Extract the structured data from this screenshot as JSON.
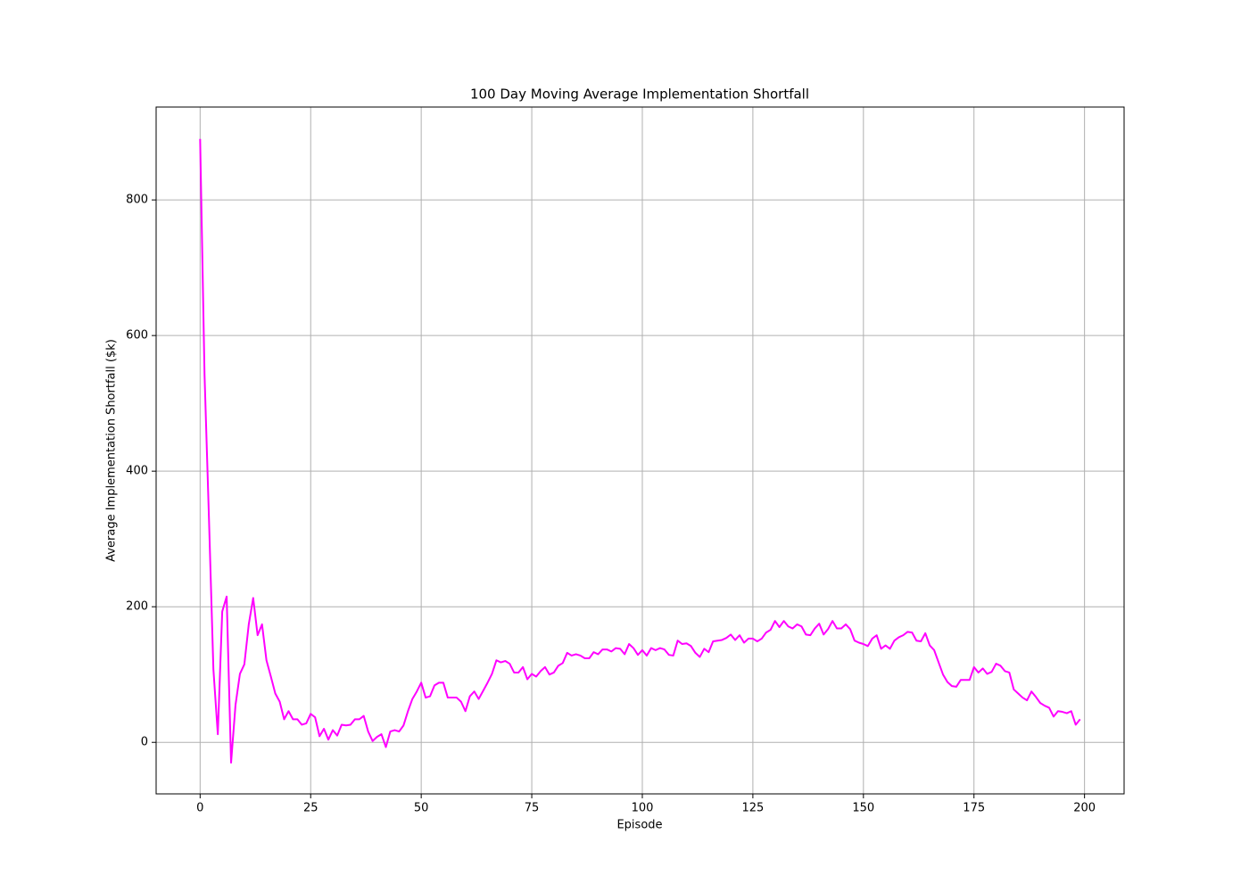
{
  "chart_data": {
    "type": "line",
    "title": "100 Day Moving Average Implementation Shortfall",
    "x_label": "Episode",
    "y_label": "Average Implementation Shortfall ($k)",
    "color": "#ff00ff",
    "grid": true,
    "xlim": [
      -9.95,
      208.95
    ],
    "ylim": [
      -76,
      937
    ],
    "xticks": [
      0,
      25,
      50,
      75,
      100,
      125,
      150,
      175,
      200
    ],
    "yticks": [
      0,
      200,
      400,
      600,
      800
    ],
    "x": [
      0,
      1,
      2,
      3,
      4,
      5,
      6,
      7,
      8,
      9,
      10,
      11,
      12,
      13,
      14,
      15,
      16,
      17,
      18,
      19,
      20,
      21,
      22,
      23,
      24,
      25,
      26,
      27,
      28,
      29,
      30,
      31,
      32,
      33,
      34,
      35,
      36,
      37,
      38,
      39,
      40,
      41,
      42,
      43,
      44,
      45,
      46,
      47,
      48,
      49,
      50,
      51,
      52,
      53,
      54,
      55,
      56,
      57,
      58,
      59,
      60,
      61,
      62,
      63,
      64,
      65,
      66,
      67,
      68,
      69,
      70,
      71,
      72,
      73,
      74,
      75,
      76,
      77,
      78,
      79,
      80,
      81,
      82,
      83,
      84,
      85,
      86,
      87,
      88,
      89,
      90,
      91,
      92,
      93,
      94,
      95,
      96,
      97,
      98,
      99,
      100,
      101,
      102,
      103,
      104,
      105,
      106,
      107,
      108,
      109,
      110,
      111,
      112,
      113,
      114,
      115,
      116,
      117,
      118,
      119,
      120,
      121,
      122,
      123,
      124,
      125,
      126,
      127,
      128,
      129,
      130,
      131,
      132,
      133,
      134,
      135,
      136,
      137,
      138,
      139,
      140,
      141,
      142,
      143,
      144,
      145,
      146,
      147,
      148,
      149,
      150,
      151,
      152,
      153,
      154,
      155,
      156,
      157,
      158,
      159,
      160,
      161,
      162,
      163,
      164,
      165,
      166,
      167,
      168,
      169,
      170,
      171,
      172,
      173,
      174,
      175,
      176,
      177,
      178,
      179,
      180,
      181,
      182,
      183,
      184,
      185,
      186,
      187,
      188,
      189,
      190,
      191,
      192,
      193,
      194,
      195,
      196,
      197,
      198,
      199
    ],
    "values": [
      890,
      542,
      330,
      108,
      12,
      193,
      215,
      -30,
      55,
      101,
      115,
      174,
      213,
      158,
      174,
      121,
      97,
      72,
      60,
      34,
      46,
      34,
      34,
      26,
      28,
      42,
      37,
      9,
      20,
      4,
      18,
      10,
      26,
      25,
      26,
      34,
      34,
      39,
      16,
      2,
      8,
      12,
      -7,
      16,
      18,
      16,
      25,
      46,
      64,
      75,
      88,
      66,
      68,
      84,
      88,
      88,
      66,
      66,
      66,
      60,
      46,
      68,
      75,
      64,
      76,
      88,
      101,
      121,
      118,
      120,
      116,
      103,
      103,
      111,
      93,
      101,
      97,
      105,
      111,
      100,
      103,
      113,
      117,
      132,
      128,
      130,
      128,
      124,
      124,
      133,
      130,
      137,
      137,
      134,
      139,
      138,
      130,
      145,
      139,
      129,
      136,
      128,
      139,
      136,
      139,
      137,
      129,
      128,
      150,
      145,
      146,
      142,
      132,
      126,
      138,
      133,
      149,
      150,
      151,
      154,
      159,
      151,
      158,
      147,
      153,
      153,
      149,
      153,
      162,
      166,
      179,
      170,
      179,
      171,
      168,
      174,
      171,
      159,
      158,
      168,
      175,
      159,
      167,
      179,
      168,
      168,
      174,
      167,
      150,
      147,
      145,
      142,
      153,
      158,
      138,
      143,
      138,
      150,
      155,
      158,
      163,
      162,
      150,
      149,
      161,
      143,
      136,
      118,
      100,
      89,
      83,
      82,
      92,
      92,
      92,
      111,
      103,
      109,
      101,
      104,
      116,
      113,
      105,
      103,
      78,
      72,
      66,
      62,
      75,
      67,
      58,
      54,
      51,
      38,
      46,
      45,
      43,
      46,
      26,
      34
    ]
  }
}
